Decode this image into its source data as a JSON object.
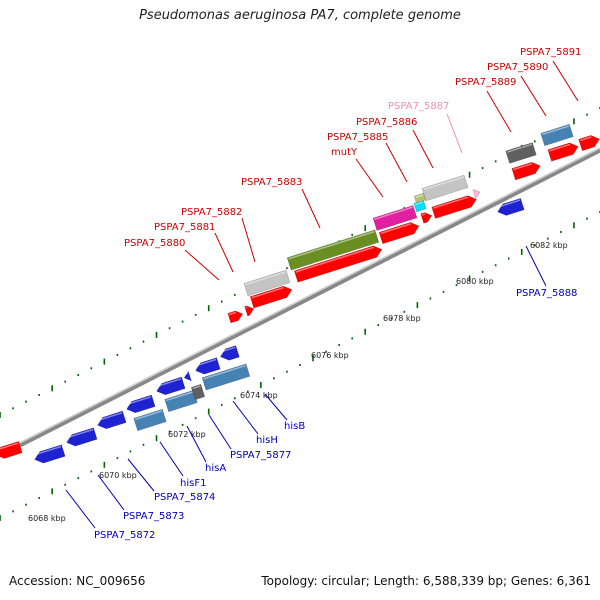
{
  "title": "Pseudomonas aeruginosa PA7, complete genome",
  "footer": {
    "accession": "Accession: NC_009656",
    "topology": "Topology: circular; Length: 6,588,339 bp; Genes: 6,361"
  },
  "colors": {
    "gene_label_forward": "#cc0000",
    "gene_label_reverse": "#0000bb",
    "label_pale": "#f48fb1",
    "cds_red": "#ff0000",
    "cds_blue": "#1e22d0",
    "steelblue": "#4682b4",
    "gray": "#c4c4c4",
    "darkgray": "#606060",
    "olive": "#6b8e23",
    "magenta": "#e020a0",
    "cyan": "#00e0ff",
    "tick": "#006400",
    "backbone": "#888888"
  },
  "tick_labels": [
    {
      "id": "t6068",
      "text": "6068 kbp"
    },
    {
      "id": "t6070",
      "text": "6070 kbp"
    },
    {
      "id": "t6072",
      "text": "6072 kbp"
    },
    {
      "id": "t6074",
      "text": "6074 kbp"
    },
    {
      "id": "t6076",
      "text": "6076 kbp"
    },
    {
      "id": "t6078",
      "text": "6078 kbp"
    },
    {
      "id": "t6080",
      "text": "6080 kbp"
    },
    {
      "id": "t6082",
      "text": "6082 kbp"
    }
  ],
  "gene_labels_forward": [
    {
      "id": "l5880",
      "text": "PSPA7_5880"
    },
    {
      "id": "l5881",
      "text": "PSPA7_5881"
    },
    {
      "id": "l5882",
      "text": "PSPA7_5882"
    },
    {
      "id": "l5883",
      "text": "PSPA7_5883"
    },
    {
      "id": "lmutY",
      "text": "mutY"
    },
    {
      "id": "l5885",
      "text": "PSPA7_5885"
    },
    {
      "id": "l5886",
      "text": "PSPA7_5886"
    },
    {
      "id": "l5887",
      "text": "PSPA7_5887"
    },
    {
      "id": "l5889",
      "text": "PSPA7_5889"
    },
    {
      "id": "l5890",
      "text": "PSPA7_5890"
    },
    {
      "id": "l5891",
      "text": "PSPA7_5891"
    }
  ],
  "gene_labels_reverse": [
    {
      "id": "l5872",
      "text": "PSPA7_5872"
    },
    {
      "id": "l5873",
      "text": "PSPA7_5873"
    },
    {
      "id": "l5874",
      "text": "PSPA7_5874"
    },
    {
      "id": "lhisF1",
      "text": "hisF1"
    },
    {
      "id": "lhisA",
      "text": "hisA"
    },
    {
      "id": "l5877",
      "text": "PSPA7_5877"
    },
    {
      "id": "lhisH",
      "text": "hisH"
    },
    {
      "id": "lhisB",
      "text": "hisB"
    },
    {
      "id": "l5888",
      "text": "PSPA7_5888"
    }
  ]
}
